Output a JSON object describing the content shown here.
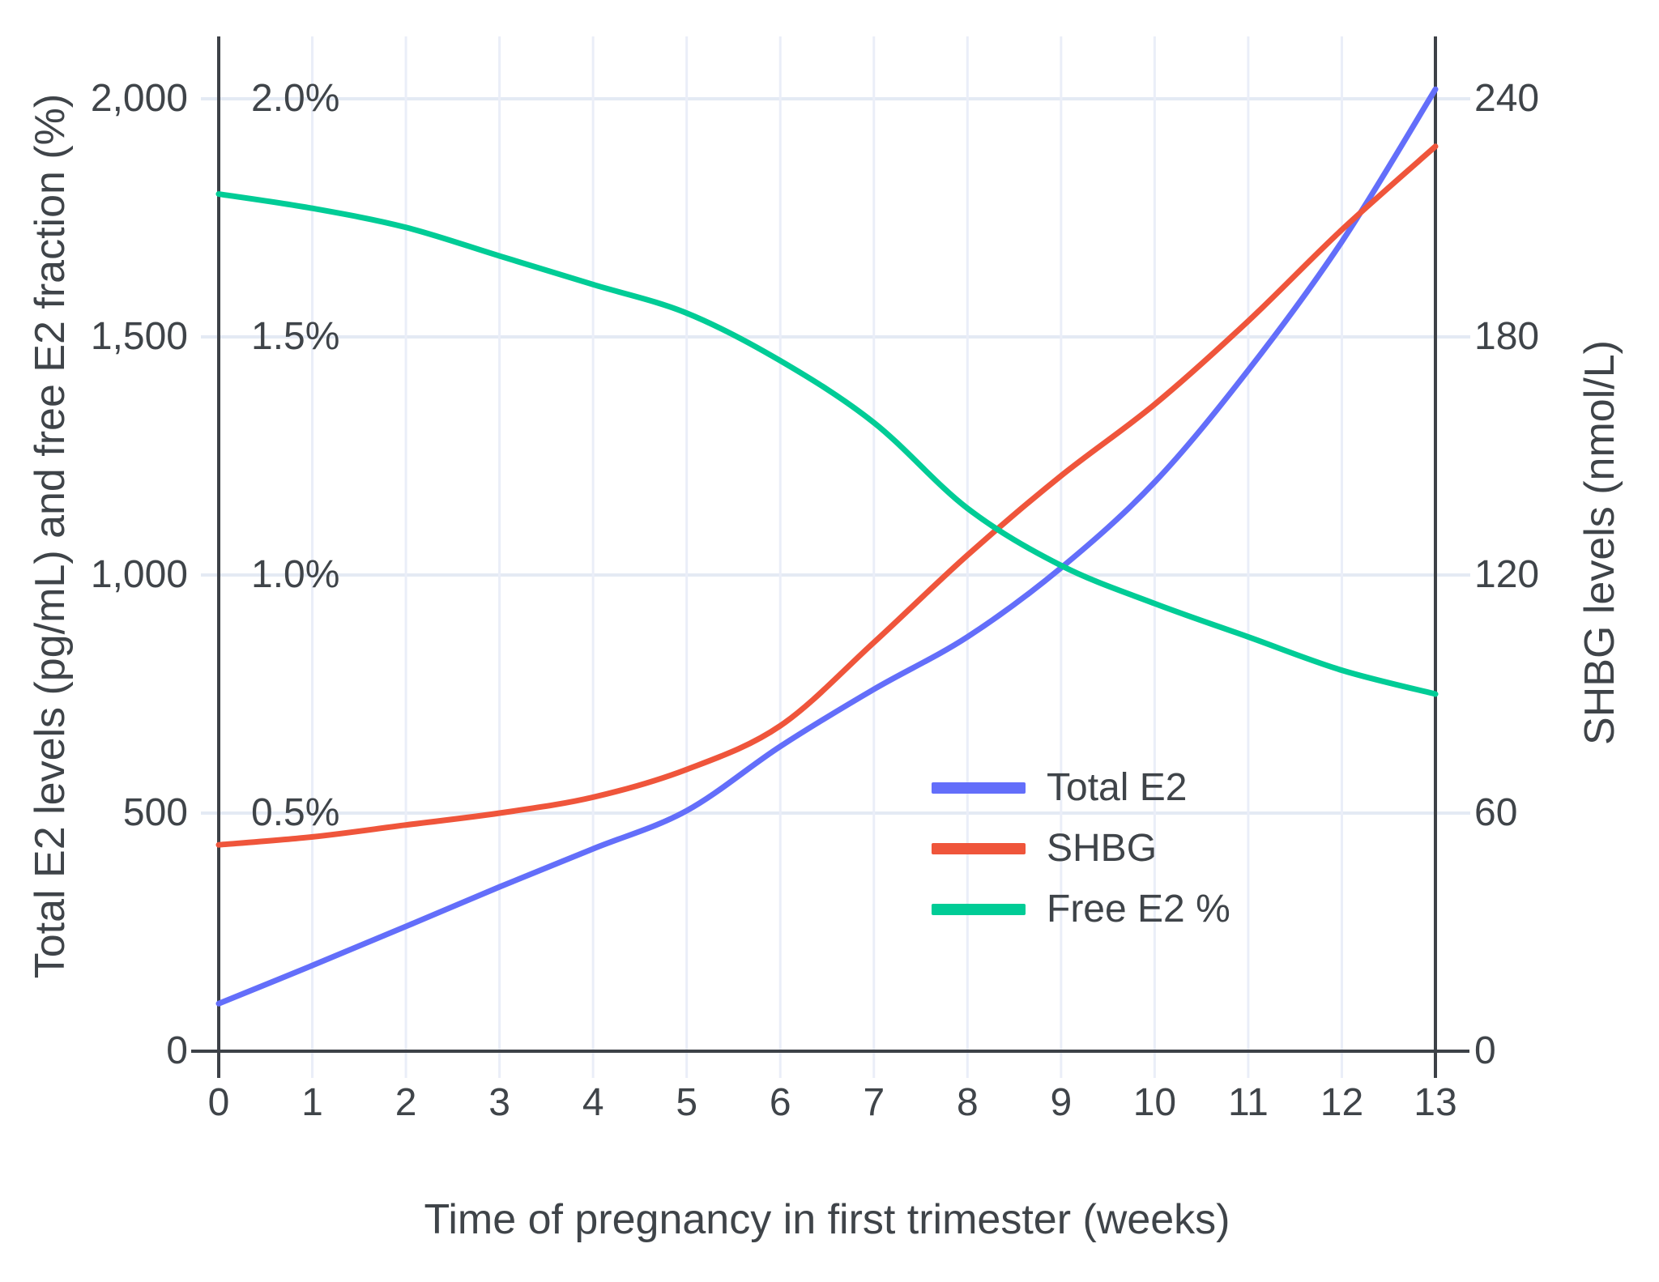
{
  "figure": {
    "x_axis_title": "Time of pregnancy in first trimester (weeks)",
    "left_axis_title": "Total E2 levels (pg/mL) and free E2 fraction (%)",
    "right_axis_title": "SHBG levels (nmol/L)"
  },
  "legend": {
    "items": [
      {
        "label": "Total E2",
        "color": "#636EFA"
      },
      {
        "label": "SHBG",
        "color": "#EF553B"
      },
      {
        "label": "Free E2 %",
        "color": "#00CC96"
      }
    ]
  },
  "colors": {
    "total_e2": "#636EFA",
    "shbg": "#EF553B",
    "free_e2": "#00CC96",
    "grid_horizontal": "#E4EAF4",
    "grid_vertical": "#EAEEF8",
    "axis_line": "#3d4147",
    "text": "#3f4449",
    "background": "#ffffff"
  },
  "chart_data": {
    "type": "line",
    "title": "",
    "xlabel": "Time of pregnancy in first trimester (weeks)",
    "ylabel_left": "Total E2 levels (pg/mL) and free E2 fraction (%)",
    "ylabel_right": "SHBG levels (nmol/L)",
    "x": [
      0,
      1,
      2,
      3,
      4,
      5,
      6,
      7,
      8,
      9,
      10,
      11,
      12,
      13
    ],
    "x_tick_labels": [
      "0",
      "1",
      "2",
      "3",
      "4",
      "5",
      "6",
      "7",
      "8",
      "9",
      "10",
      "11",
      "12",
      "13"
    ],
    "left_axis": {
      "range": [
        0,
        2000
      ],
      "tick_values": [
        0,
        500,
        1000,
        1500,
        2000
      ],
      "tick_labels": [
        "0",
        "500",
        "1,000",
        "1,500",
        "2,000"
      ]
    },
    "left_percent_axis": {
      "range": [
        0,
        2.0
      ],
      "tick_labels": [
        "0.5%",
        "1.0%",
        "1.5%",
        "2.0%"
      ],
      "tick_values": [
        0.5,
        1.0,
        1.5,
        2.0
      ]
    },
    "right_axis": {
      "range": [
        0,
        240
      ],
      "tick_values": [
        0,
        60,
        120,
        180,
        240
      ],
      "tick_labels": [
        "0",
        "60",
        "120",
        "180",
        "240"
      ]
    },
    "grid": "on",
    "legend_position": "inside-right",
    "series": [
      {
        "name": "Total E2",
        "axis": "left",
        "units": "pg/mL",
        "color": "#636EFA",
        "values": [
          100,
          180,
          262,
          345,
          425,
          505,
          640,
          760,
          870,
          1015,
          1195,
          1430,
          1700,
          2020
        ]
      },
      {
        "name": "SHBG",
        "axis": "right",
        "units": "nmol/L",
        "color": "#EF553B",
        "values": [
          52,
          54,
          57,
          60,
          64,
          71,
          82,
          103,
          125,
          145,
          163,
          184,
          207,
          228
        ]
      },
      {
        "name": "Free E2 %",
        "axis": "left_percent",
        "units": "%",
        "color": "#00CC96",
        "values": [
          1.8,
          1.77,
          1.73,
          1.67,
          1.61,
          1.55,
          1.45,
          1.32,
          1.14,
          1.02,
          0.94,
          0.87,
          0.8,
          0.75
        ]
      }
    ]
  }
}
